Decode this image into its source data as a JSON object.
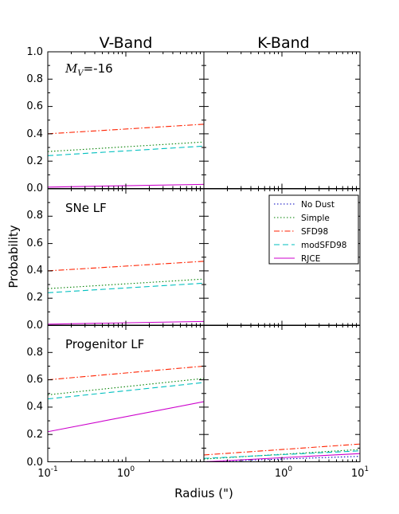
{
  "column_titles": [
    "V-Band",
    "K-Band"
  ],
  "xlabel": "Radius (\")",
  "ylabel": "Probability",
  "panel_labels": {
    "row1_main": "M",
    "row1_sub": "V",
    "row1_suffix": "=-16",
    "row2": "SNe LF",
    "row3": "Progenitor LF"
  },
  "x_tick_labels": [
    {
      "base": "10",
      "exp": "-1"
    },
    {
      "base": "10",
      "exp": "0"
    },
    {
      "base": "10",
      "exp": "1"
    }
  ],
  "y_tick_labels_top": [
    "1.0",
    "0.8",
    "0.6",
    "0.4",
    "0.2",
    "0.0"
  ],
  "y_tick_labels_other": [
    "0.8",
    "0.6",
    "0.4",
    "0.2",
    "0.0"
  ],
  "legend": {
    "entries": [
      "No Dust",
      "Simple",
      "SFD98",
      "modSFD98",
      "RJCE"
    ],
    "placement": "middle-right panel, upper-right"
  },
  "colors": {
    "No Dust": "#0000bf",
    "Simple": "#008000",
    "SFD98": "#ff2200",
    "modSFD98": "#00bfbf",
    "RJCE": "#cc00cc"
  },
  "chart_data": {
    "type": "line",
    "x_scale": "log",
    "xlim": [
      0.1,
      10
    ],
    "ylim": [
      0,
      1.0
    ],
    "layout": "3 rows x 2 columns (rows: M_V=-16, SNe LF, Progenitor LF; columns: V-Band, K-Band)",
    "panels": [
      {
        "row": 0,
        "col": 0,
        "label": "M_V=-16",
        "column": "V-Band",
        "series": [
          {
            "name": "No Dust",
            "x": [
              0.1,
              10
            ],
            "y": [
              0.0,
              0.0
            ]
          },
          {
            "name": "Simple",
            "x": [
              0.1,
              10
            ],
            "y": [
              0.27,
              0.34
            ]
          },
          {
            "name": "SFD98",
            "x": [
              0.1,
              10
            ],
            "y": [
              0.4,
              0.47
            ]
          },
          {
            "name": "modSFD98",
            "x": [
              0.1,
              10
            ],
            "y": [
              0.24,
              0.31
            ]
          },
          {
            "name": "RJCE",
            "x": [
              0.1,
              10
            ],
            "y": [
              0.01,
              0.03
            ]
          }
        ]
      },
      {
        "row": 0,
        "col": 1,
        "label": "",
        "column": "K-Band",
        "series": [
          {
            "name": "No Dust",
            "x": [
              0.1,
              10
            ],
            "y": [
              0.0,
              0.0
            ]
          },
          {
            "name": "Simple",
            "x": [
              0.1,
              10
            ],
            "y": [
              0.0,
              0.0
            ]
          },
          {
            "name": "SFD98",
            "x": [
              0.1,
              10
            ],
            "y": [
              0.0,
              0.0
            ]
          },
          {
            "name": "modSFD98",
            "x": [
              0.1,
              10
            ],
            "y": [
              0.0,
              0.0
            ]
          },
          {
            "name": "RJCE",
            "x": [
              0.1,
              10
            ],
            "y": [
              0.0,
              0.0
            ]
          }
        ]
      },
      {
        "row": 1,
        "col": 0,
        "label": "SNe LF",
        "column": "V-Band",
        "series": [
          {
            "name": "No Dust",
            "x": [
              0.1,
              10
            ],
            "y": [
              0.0,
              0.0
            ]
          },
          {
            "name": "Simple",
            "x": [
              0.1,
              10
            ],
            "y": [
              0.27,
              0.34
            ]
          },
          {
            "name": "SFD98",
            "x": [
              0.1,
              10
            ],
            "y": [
              0.4,
              0.47
            ]
          },
          {
            "name": "modSFD98",
            "x": [
              0.1,
              10
            ],
            "y": [
              0.24,
              0.31
            ]
          },
          {
            "name": "RJCE",
            "x": [
              0.1,
              10
            ],
            "y": [
              0.01,
              0.03
            ]
          }
        ]
      },
      {
        "row": 1,
        "col": 1,
        "label": "",
        "column": "K-Band",
        "series": [
          {
            "name": "No Dust",
            "x": [
              0.1,
              10
            ],
            "y": [
              0.0,
              0.0
            ]
          },
          {
            "name": "Simple",
            "x": [
              0.1,
              10
            ],
            "y": [
              0.0,
              0.0
            ]
          },
          {
            "name": "SFD98",
            "x": [
              0.1,
              10
            ],
            "y": [
              0.0,
              0.0
            ]
          },
          {
            "name": "modSFD98",
            "x": [
              0.1,
              10
            ],
            "y": [
              0.0,
              0.0
            ]
          },
          {
            "name": "RJCE",
            "x": [
              0.1,
              10
            ],
            "y": [
              0.0,
              0.0
            ]
          }
        ]
      },
      {
        "row": 2,
        "col": 0,
        "label": "Progenitor LF",
        "column": "V-Band",
        "series": [
          {
            "name": "No Dust",
            "x": [
              0.1,
              10
            ],
            "y": [
              0.0,
              0.0
            ]
          },
          {
            "name": "Simple",
            "x": [
              0.1,
              10
            ],
            "y": [
              0.49,
              0.61
            ]
          },
          {
            "name": "SFD98",
            "x": [
              0.1,
              10
            ],
            "y": [
              0.6,
              0.7
            ]
          },
          {
            "name": "modSFD98",
            "x": [
              0.1,
              10
            ],
            "y": [
              0.46,
              0.58
            ]
          },
          {
            "name": "RJCE",
            "x": [
              0.1,
              10
            ],
            "y": [
              0.22,
              0.44
            ]
          }
        ]
      },
      {
        "row": 2,
        "col": 1,
        "label": "",
        "column": "K-Band",
        "series": [
          {
            "name": "No Dust",
            "x": [
              0.1,
              10
            ],
            "y": [
              0.0,
              0.04
            ]
          },
          {
            "name": "Simple",
            "x": [
              0.1,
              10
            ],
            "y": [
              0.02,
              0.09
            ]
          },
          {
            "name": "SFD98",
            "x": [
              0.1,
              10
            ],
            "y": [
              0.05,
              0.13
            ]
          },
          {
            "name": "modSFD98",
            "x": [
              0.1,
              10
            ],
            "y": [
              0.025,
              0.08
            ]
          },
          {
            "name": "RJCE",
            "x": [
              0.1,
              10
            ],
            "y": [
              0.0,
              0.06
            ]
          }
        ]
      }
    ]
  }
}
